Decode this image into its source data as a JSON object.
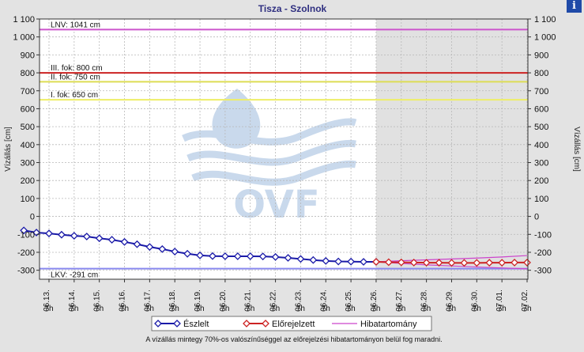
{
  "chart_data": {
    "type": "line",
    "title": "Tisza - Szolnok",
    "ylabel_left": "Vízállás [cm]",
    "ylabel_right": "Vízállás [cm]",
    "ylim": [
      -350,
      1100
    ],
    "y_ticks": [
      -300,
      -200,
      -100,
      0,
      100,
      200,
      300,
      400,
      500,
      600,
      700,
      800,
      900,
      1000,
      1100
    ],
    "y_tick_labels": [
      "-300",
      "-200",
      "-100",
      "0",
      "100",
      "200",
      "300",
      "400",
      "500",
      "600",
      "700",
      "800",
      "900",
      "1 000",
      "1 100"
    ],
    "x_ticks": [
      {
        "date": "06.13.",
        "time": "7h"
      },
      {
        "date": "06.14.",
        "time": "7h"
      },
      {
        "date": "06.15.",
        "time": "7h"
      },
      {
        "date": "06.16.",
        "time": "7h"
      },
      {
        "date": "06.17.",
        "time": "7h"
      },
      {
        "date": "06.18.",
        "time": "7h"
      },
      {
        "date": "06.19.",
        "time": "7h"
      },
      {
        "date": "06.20.",
        "time": "7h"
      },
      {
        "date": "06.21.",
        "time": "7h"
      },
      {
        "date": "06.22.",
        "time": "7h"
      },
      {
        "date": "06.23.",
        "time": "7h"
      },
      {
        "date": "06.24.",
        "time": "7h"
      },
      {
        "date": "06.25.",
        "time": "7h"
      },
      {
        "date": "06.26.",
        "time": "7h"
      },
      {
        "date": "06.27.",
        "time": "7h"
      },
      {
        "date": "06.28.",
        "time": "7h"
      },
      {
        "date": "06.29.",
        "time": "7h"
      },
      {
        "date": "06.30.",
        "time": "7h"
      },
      {
        "date": "07.01.",
        "time": "7h"
      },
      {
        "date": "07.02.",
        "time": "7h"
      }
    ],
    "forecast_start": "06.26. 7h",
    "reference_lines": [
      {
        "label": "LNV: 1041 cm",
        "value": 1041,
        "color": "#cc55cc"
      },
      {
        "label": "III. fok: 800 cm",
        "value": 800,
        "color": "#cc2222"
      },
      {
        "label": "II. fok: 750 cm",
        "value": 750,
        "color": "#dddd55"
      },
      {
        "label": "I. fok: 650 cm",
        "value": 650,
        "color": "#eeee66"
      },
      {
        "label": "LKV: -291 cm",
        "value": -291,
        "color": "#8888ee"
      }
    ],
    "series": [
      {
        "name": "Észlelt",
        "color": "#1a1aa8",
        "x": [
          "06.12. 7h",
          "06.12. 19h",
          "06.13. 7h",
          "06.13. 19h",
          "06.14. 7h",
          "06.14. 19h",
          "06.15. 7h",
          "06.15. 19h",
          "06.16. 7h",
          "06.16. 19h",
          "06.17. 7h",
          "06.17. 19h",
          "06.18. 7h",
          "06.18. 19h",
          "06.19. 7h",
          "06.19. 19h",
          "06.20. 7h",
          "06.20. 19h",
          "06.21. 7h",
          "06.21. 19h",
          "06.22. 7h",
          "06.22. 19h",
          "06.23. 7h",
          "06.23. 19h",
          "06.24. 7h",
          "06.24. 19h",
          "06.25. 7h",
          "06.25. 19h",
          "06.26. 7h"
        ],
        "values": [
          -78,
          -90,
          -95,
          -102,
          -108,
          -112,
          -122,
          -130,
          -142,
          -155,
          -170,
          -182,
          -196,
          -208,
          -217,
          -221,
          -222,
          -222,
          -222,
          -223,
          -226,
          -231,
          -237,
          -243,
          -248,
          -251,
          -252,
          -253,
          -253
        ]
      },
      {
        "name": "Előrejelzett",
        "color": "#cc2222",
        "x": [
          "06.26. 7h",
          "06.26. 19h",
          "06.27. 7h",
          "06.27. 19h",
          "06.28. 7h",
          "06.28. 19h",
          "06.29. 7h",
          "06.29. 19h",
          "06.30. 7h",
          "06.30. 19h",
          "07.01. 7h",
          "07.01. 19h",
          "07.02. 7h"
        ],
        "values": [
          -253,
          -255,
          -256,
          -257,
          -258,
          -258,
          -259,
          -259,
          -259,
          -258,
          -258,
          -257,
          -257
        ]
      },
      {
        "name": "Hibatartomány",
        "color": "#cc44cc",
        "x": [
          "06.26. 7h",
          "06.27. 7h",
          "06.28. 7h",
          "06.29. 7h",
          "06.30. 7h",
          "07.01. 7h",
          "07.02. 7h"
        ],
        "upper": [
          -253,
          -247,
          -242,
          -237,
          -232,
          -226,
          -218
        ],
        "lower": [
          -253,
          -262,
          -270,
          -276,
          -282,
          -287,
          -292
        ]
      }
    ],
    "footnote": "A vízállás mintegy 70%-os valószínűséggel az előrejelzési hibatartományon belül fog maradni.",
    "watermark": "OVF"
  },
  "info_icon": "info-icon",
  "info_glyph": "i"
}
